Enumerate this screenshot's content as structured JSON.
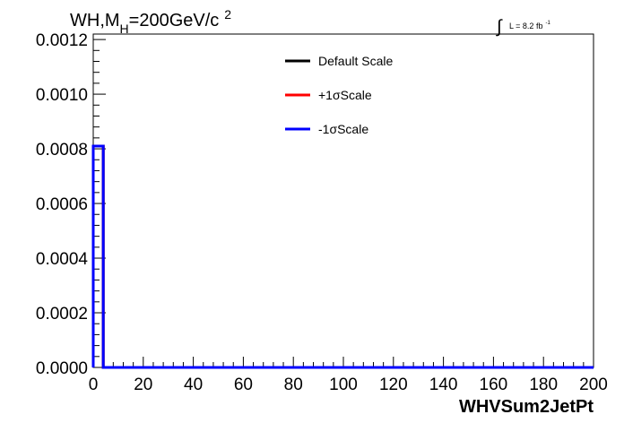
{
  "chart_data": {
    "type": "line",
    "title": {
      "prefix": "WH,M",
      "subscript": "H",
      "suffix": "=200GeV/c",
      "superscript": "2"
    },
    "lumi": {
      "symbol": "∫",
      "text": "L = 8.2 fb",
      "superscript": "-1"
    },
    "xlabel": "WHVSum2JetPt",
    "ylabel": "",
    "xlim": [
      0,
      200
    ],
    "ylim": [
      0,
      0.00122
    ],
    "x_ticks": [
      "0",
      "20",
      "40",
      "60",
      "80",
      "100",
      "120",
      "140",
      "160",
      "180",
      "200"
    ],
    "y_ticks": [
      "0.0000",
      "0.0002",
      "0.0004",
      "0.0006",
      "0.0008",
      "0.0010",
      "0.0012"
    ],
    "x_tick_values": [
      0,
      20,
      40,
      60,
      80,
      100,
      120,
      140,
      160,
      180,
      200
    ],
    "y_tick_values": [
      0,
      0.0002,
      0.0004,
      0.0006,
      0.0008,
      0.001,
      0.0012
    ],
    "legend_position": "top-center",
    "grid": false,
    "bin_edges": [
      0,
      4,
      200
    ],
    "series": [
      {
        "name": "Default Scale",
        "color": "#000000",
        "values": [
          0.00081,
          0.0
        ]
      },
      {
        "name": "+1σScale",
        "color": "#ff0000",
        "values": [
          0.00081,
          0.0
        ]
      },
      {
        "name": "-1σScale",
        "color": "#0000ff",
        "values": [
          0.00081,
          0.0
        ]
      }
    ]
  }
}
